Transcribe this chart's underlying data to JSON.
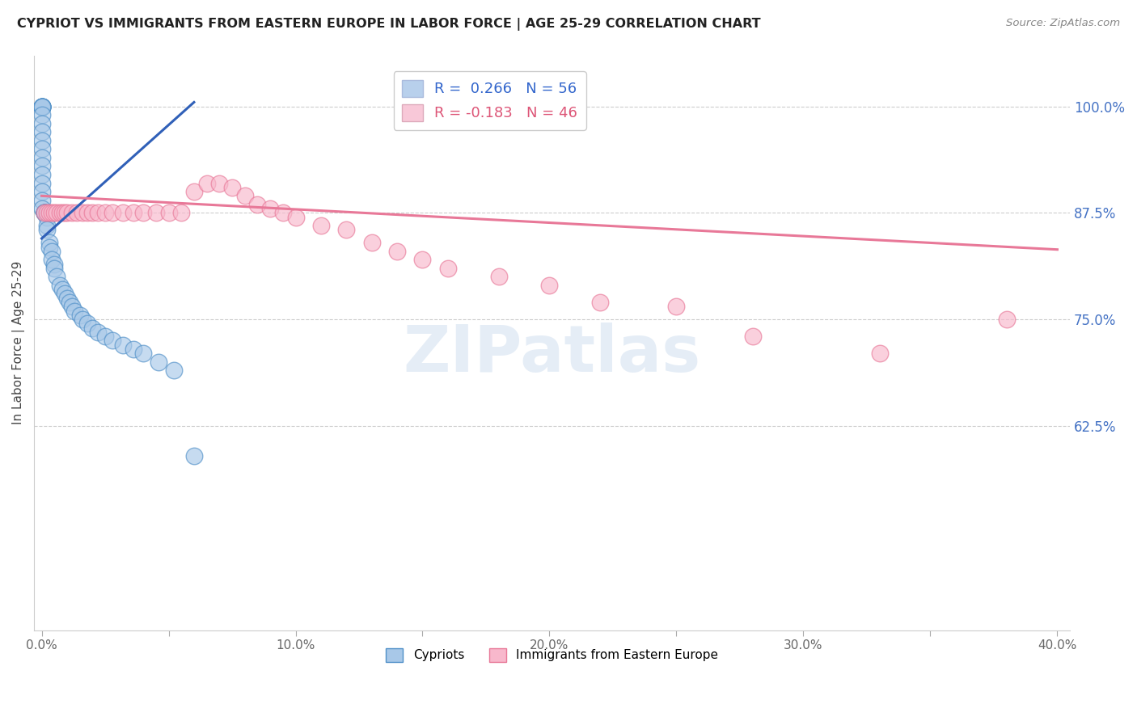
{
  "title": "CYPRIOT VS IMMIGRANTS FROM EASTERN EUROPE IN LABOR FORCE | AGE 25-29 CORRELATION CHART",
  "source": "Source: ZipAtlas.com",
  "ylabel": "In Labor Force | Age 25-29",
  "xlim": [
    -0.003,
    0.405
  ],
  "ylim": [
    0.385,
    1.06
  ],
  "cypriot_color": "#a8c8e8",
  "cypriot_edge": "#5090c8",
  "immigrant_color": "#f8b8cc",
  "immigrant_edge": "#e87898",
  "trend_blue": "#3060b8",
  "trend_pink": "#e87898",
  "grid_color": "#cccccc",
  "legend_blue_fill": "#b8d0ec",
  "legend_pink_fill": "#f8c8d8",
  "cypriot_x": [
    0.0,
    0.0,
    0.0,
    0.0,
    0.0,
    0.0,
    0.0,
    0.0,
    0.0,
    0.0,
    0.0,
    0.0,
    0.0,
    0.0,
    0.0,
    0.0,
    0.0,
    0.0,
    0.0,
    0.0,
    0.001,
    0.001,
    0.001,
    0.001,
    0.001,
    0.001,
    0.002,
    0.002,
    0.002,
    0.003,
    0.003,
    0.004,
    0.004,
    0.005,
    0.005,
    0.006,
    0.007,
    0.008,
    0.009,
    0.01,
    0.011,
    0.012,
    0.013,
    0.015,
    0.016,
    0.018,
    0.02,
    0.022,
    0.025,
    0.028,
    0.032,
    0.036,
    0.04,
    0.046,
    0.052,
    0.06
  ],
  "cypriot_y": [
    1.0,
    1.0,
    1.0,
    1.0,
    1.0,
    1.0,
    1.0,
    1.0,
    0.99,
    0.98,
    0.97,
    0.96,
    0.95,
    0.94,
    0.93,
    0.92,
    0.91,
    0.9,
    0.89,
    0.88,
    0.875,
    0.875,
    0.875,
    0.875,
    0.875,
    0.875,
    0.87,
    0.86,
    0.855,
    0.84,
    0.835,
    0.83,
    0.82,
    0.815,
    0.81,
    0.8,
    0.79,
    0.785,
    0.78,
    0.775,
    0.77,
    0.765,
    0.76,
    0.755,
    0.75,
    0.745,
    0.74,
    0.735,
    0.73,
    0.725,
    0.72,
    0.715,
    0.71,
    0.7,
    0.69,
    0.59
  ],
  "immigrant_x": [
    0.001,
    0.002,
    0.003,
    0.004,
    0.005,
    0.006,
    0.007,
    0.008,
    0.009,
    0.01,
    0.012,
    0.014,
    0.016,
    0.018,
    0.02,
    0.022,
    0.025,
    0.028,
    0.032,
    0.036,
    0.04,
    0.045,
    0.05,
    0.055,
    0.06,
    0.065,
    0.07,
    0.075,
    0.08,
    0.085,
    0.09,
    0.095,
    0.1,
    0.11,
    0.12,
    0.13,
    0.14,
    0.15,
    0.16,
    0.18,
    0.2,
    0.22,
    0.25,
    0.28,
    0.33,
    0.38
  ],
  "immigrant_y": [
    0.875,
    0.875,
    0.875,
    0.875,
    0.875,
    0.875,
    0.875,
    0.875,
    0.875,
    0.875,
    0.875,
    0.875,
    0.875,
    0.875,
    0.875,
    0.875,
    0.875,
    0.875,
    0.875,
    0.875,
    0.875,
    0.875,
    0.875,
    0.875,
    0.9,
    0.91,
    0.91,
    0.905,
    0.895,
    0.885,
    0.88,
    0.875,
    0.87,
    0.86,
    0.855,
    0.84,
    0.83,
    0.82,
    0.81,
    0.8,
    0.79,
    0.77,
    0.765,
    0.73,
    0.71,
    0.75
  ],
  "blue_trend_x0": 0.0,
  "blue_trend_y0": 0.845,
  "blue_trend_x1": 0.06,
  "blue_trend_y1": 1.005,
  "pink_trend_x0": 0.0,
  "pink_trend_y0": 0.895,
  "pink_trend_x1": 0.4,
  "pink_trend_y1": 0.832
}
